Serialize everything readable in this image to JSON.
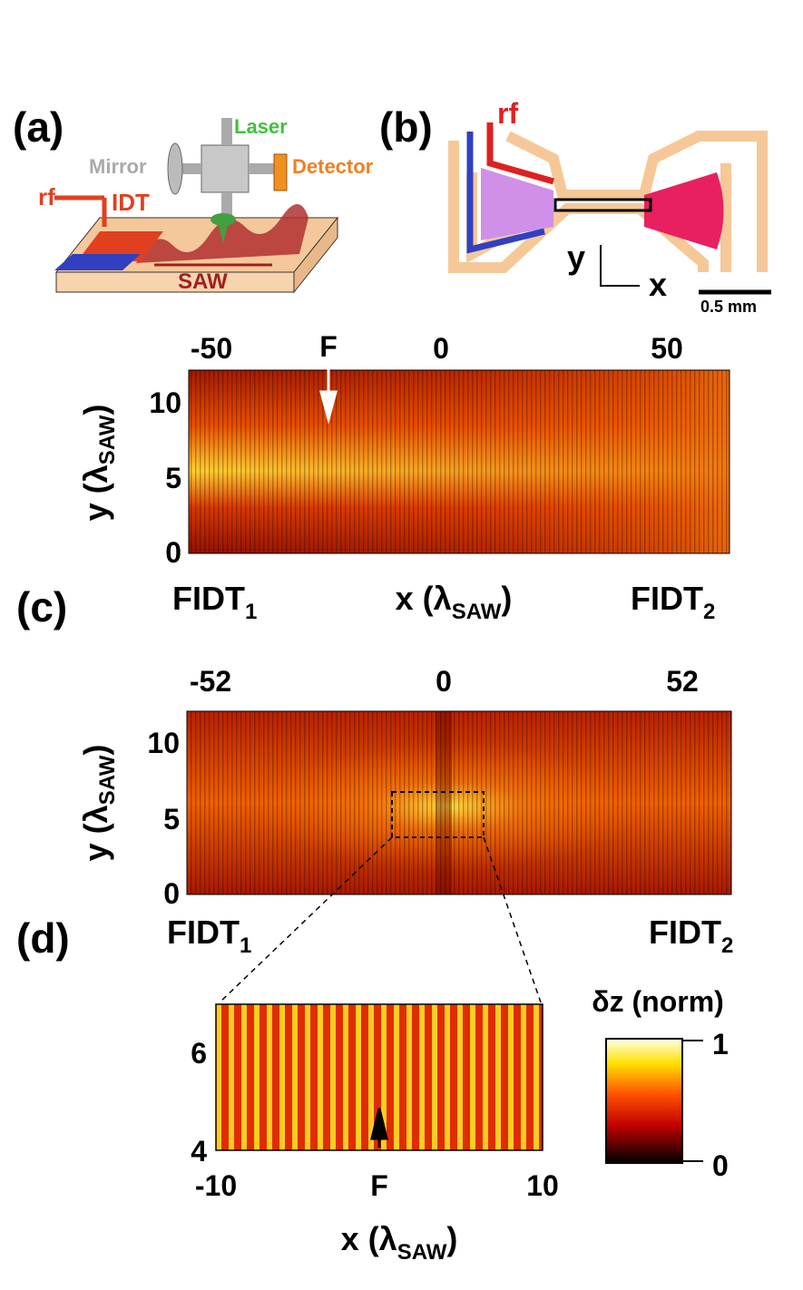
{
  "panel_a": {
    "label": "(a)",
    "laser": "Laser",
    "mirror": "Mirror",
    "detector": "Detector",
    "rf": "rf",
    "idt": "IDT",
    "saw": "SAW"
  },
  "panel_b": {
    "label": "(b)",
    "rf": "rf",
    "axis_y": "y",
    "axis_x": "x",
    "scale_bar": "0.5 mm"
  },
  "map_1": {
    "x_ticks": [
      "-50",
      "0",
      "50"
    ],
    "marker": "F",
    "y_ticks": [
      "10",
      "5",
      "0"
    ],
    "y_label": {
      "main": "y (λ",
      "sub": "SAW",
      "end": ")"
    },
    "x_label": {
      "main": "x (λ",
      "sub": "SAW",
      "end": ")"
    },
    "left_end": {
      "main": "FIDT",
      "sub": "1"
    },
    "right_end": {
      "main": "FIDT",
      "sub": "2"
    }
  },
  "panel_c": {
    "label": "(c)"
  },
  "map_2": {
    "x_ticks": [
      "-52",
      "0",
      "52"
    ],
    "y_ticks": [
      "10",
      "5",
      "0"
    ],
    "y_label": {
      "main": "y (λ",
      "sub": "SAW",
      "end": ")"
    },
    "left_end": {
      "main": "FIDT",
      "sub": "1"
    },
    "right_end": {
      "main": "FIDT",
      "sub": "2"
    }
  },
  "panel_d": {
    "label": "(d)"
  },
  "map_3": {
    "y_ticks": [
      "6",
      "4"
    ],
    "x_ticks": [
      "-10",
      "10"
    ],
    "marker": "F",
    "x_label": {
      "main": "x (λ",
      "sub": "SAW",
      "end": ")"
    }
  },
  "colorbar": {
    "title": "δz (norm)",
    "max": "1",
    "min": "0"
  }
}
